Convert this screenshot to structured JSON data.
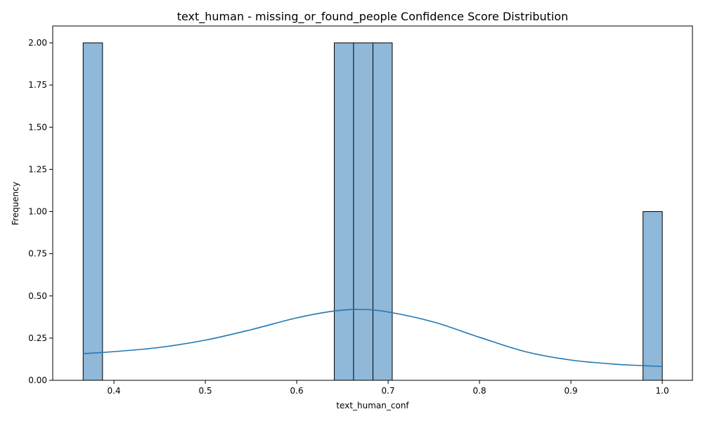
{
  "chart_data": {
    "type": "bar",
    "title": "text_human - missing_or_found_people Confidence Score Distribution",
    "xlabel": "text_human_conf",
    "ylabel": "Frequency",
    "xlim": [
      0.333,
      1.033
    ],
    "ylim": [
      0,
      2.1
    ],
    "grid": false,
    "x_ticks": [
      "0.4",
      "0.5",
      "0.6",
      "0.7",
      "0.8",
      "0.9",
      "1.0"
    ],
    "x_tick_values": [
      0.4,
      0.5,
      0.6,
      0.7,
      0.8,
      0.9,
      1.0
    ],
    "y_ticks": [
      "0.00",
      "0.25",
      "0.50",
      "0.75",
      "1.00",
      "1.25",
      "1.50",
      "1.75",
      "2.00"
    ],
    "y_tick_values": [
      0,
      0.25,
      0.5,
      0.75,
      1.0,
      1.25,
      1.5,
      1.75,
      2.0
    ],
    "bins": [
      {
        "x0": 0.3663,
        "x1": 0.3875,
        "count": 2
      },
      {
        "x0": 0.6411,
        "x1": 0.6622,
        "count": 2
      },
      {
        "x0": 0.6622,
        "x1": 0.6834,
        "count": 2
      },
      {
        "x0": 0.6834,
        "x1": 0.7045,
        "count": 2
      },
      {
        "x0": 0.9789,
        "x1": 1.0,
        "count": 1
      }
    ],
    "kde": {
      "x": [
        0.366,
        0.4,
        0.45,
        0.5,
        0.55,
        0.6,
        0.64,
        0.67,
        0.7,
        0.75,
        0.8,
        0.85,
        0.9,
        0.95,
        1.0
      ],
      "y": [
        0.158,
        0.17,
        0.195,
        0.238,
        0.3,
        0.37,
        0.41,
        0.42,
        0.405,
        0.345,
        0.255,
        0.17,
        0.12,
        0.095,
        0.082
      ]
    },
    "colors": {
      "bar_fill": "#8fb8d9",
      "bar_edge": "#000000",
      "kde_line": "#1f77b4"
    }
  }
}
